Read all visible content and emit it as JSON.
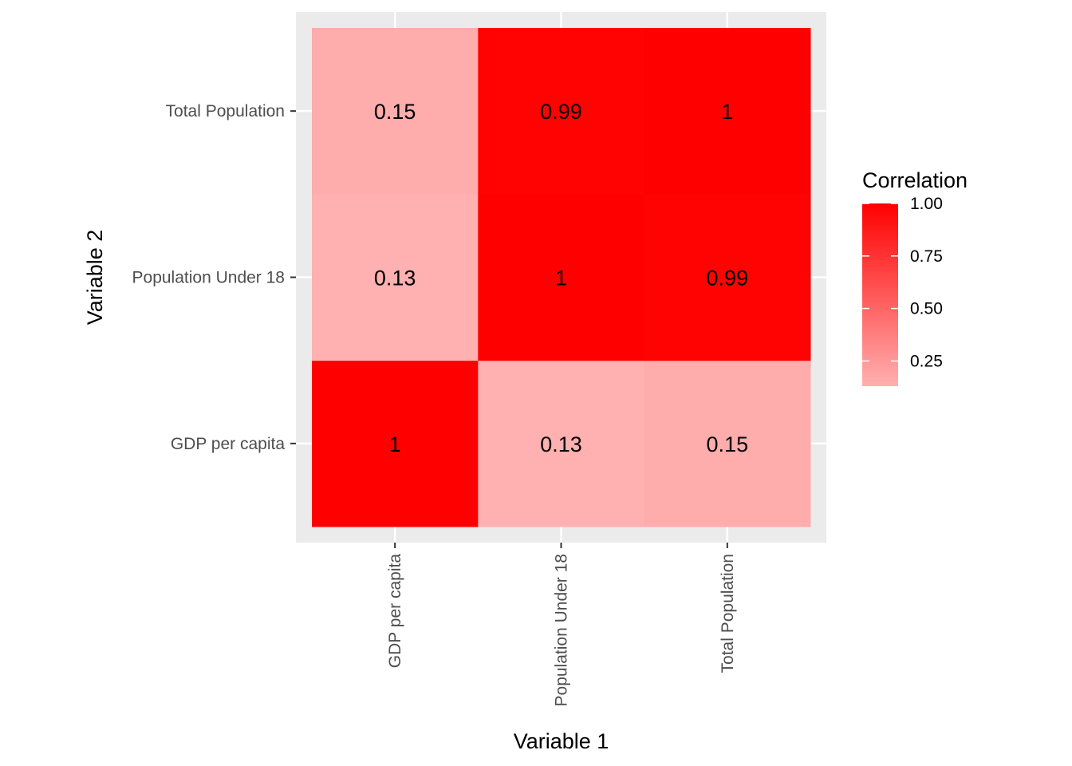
{
  "chart_data": {
    "type": "heatmap",
    "title": "",
    "xlabel": "Variable 1",
    "ylabel": "Variable 2",
    "x_categories": [
      "GDP per capita",
      "Population Under 18",
      "Total Population"
    ],
    "y_categories": [
      "GDP per capita",
      "Population Under 18",
      "Total Population"
    ],
    "cells": [
      {
        "x": "GDP per capita",
        "y": "GDP per capita",
        "value": 1,
        "label": "1"
      },
      {
        "x": "Population Under 18",
        "y": "GDP per capita",
        "value": 0.13,
        "label": "0.13"
      },
      {
        "x": "Total Population",
        "y": "GDP per capita",
        "value": 0.15,
        "label": "0.15"
      },
      {
        "x": "GDP per capita",
        "y": "Population Under 18",
        "value": 0.13,
        "label": "0.13"
      },
      {
        "x": "Population Under 18",
        "y": "Population Under 18",
        "value": 1,
        "label": "1"
      },
      {
        "x": "Total Population",
        "y": "Population Under 18",
        "value": 0.99,
        "label": "0.99"
      },
      {
        "x": "GDP per capita",
        "y": "Total Population",
        "value": 0.15,
        "label": "0.15"
      },
      {
        "x": "Population Under 18",
        "y": "Total Population",
        "value": 0.99,
        "label": "0.99"
      },
      {
        "x": "Total Population",
        "y": "Total Population",
        "value": 1,
        "label": "1"
      }
    ],
    "legend": {
      "title": "Correlation",
      "placement": "right",
      "breaks": [
        1.0,
        0.75,
        0.5,
        0.25
      ],
      "break_labels": [
        "1.00",
        "0.75",
        "0.50",
        "0.25"
      ],
      "range": [
        0.13,
        1.0
      ],
      "low_color": "#ffb0b0",
      "high_color": "#ff0000"
    },
    "panel_background": "#ebebeb",
    "grid": true
  }
}
